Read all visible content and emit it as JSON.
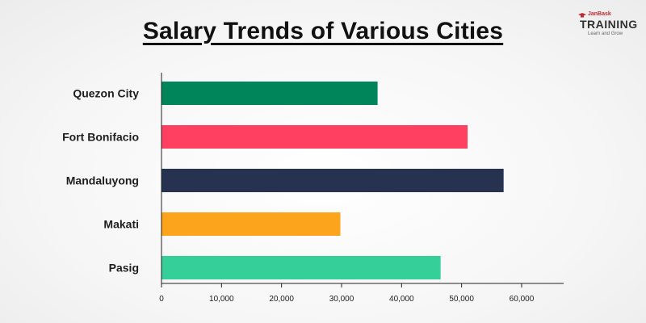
{
  "chart_data": {
    "type": "bar",
    "orientation": "horizontal",
    "title": "Salary Trends of Various Cities",
    "categories": [
      "Quezon City",
      "Fort Bonifacio",
      "Mandaluyong",
      "Makati",
      "Pasig"
    ],
    "values": [
      36000,
      51000,
      57000,
      29800,
      46500
    ],
    "colors": [
      "#00845a",
      "#ff4060",
      "#263250",
      "#fba41c",
      "#35cf9a"
    ],
    "xlim": [
      0,
      67000
    ],
    "xticks": [
      0,
      10000,
      20000,
      30000,
      40000,
      50000,
      60000
    ],
    "xtick_labels": [
      "0",
      "10,000",
      "20,000",
      "30,000",
      "40,000",
      "50,000",
      "60,000"
    ],
    "xlabel": "",
    "ylabel": "",
    "grid": false,
    "legend": "none"
  },
  "logo": {
    "small": "JanBask",
    "main": "TRAINING",
    "tagline": "Learn and Grow"
  }
}
